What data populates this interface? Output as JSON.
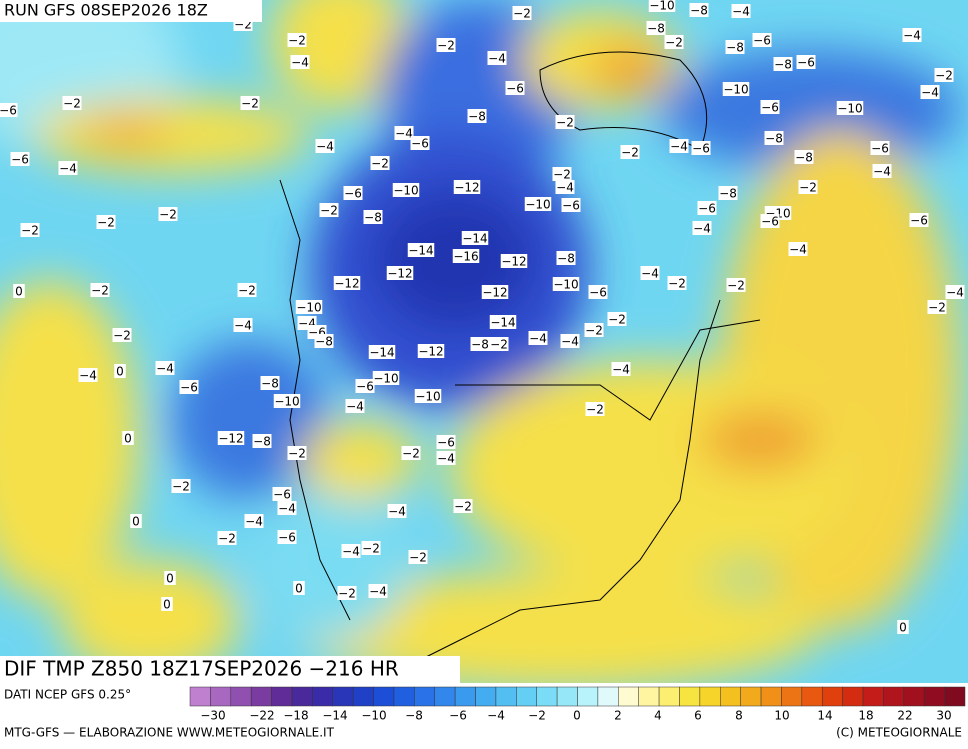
{
  "header": {
    "run": "RUN GFS 08SEP2026 18Z"
  },
  "map": {
    "title": "DIF TMP Z850 18Z17SEP2026 −216 HR",
    "contour_labels": [
      "−2",
      "−2",
      "−10",
      "−8",
      "−4",
      "−8",
      "−2",
      "−8",
      "−6",
      "−4",
      "−2",
      "−2",
      "−4",
      "−4",
      "−8",
      "−6",
      "−2",
      "−4",
      "−6",
      "−2",
      "−2",
      "−6",
      "−10",
      "−6",
      "−10",
      "−8",
      "−2",
      "−4",
      "−6",
      "−4",
      "−2",
      "−4",
      "−6",
      "−8",
      "−6",
      "−6",
      "−4",
      "−2",
      "−8",
      "−4",
      "−2",
      "−10",
      "−12",
      "−4",
      "−6",
      "−2",
      "−8",
      "−10",
      "−6",
      "−8",
      "−2",
      "−6",
      "−10",
      "−6",
      "−2",
      "−2",
      "−2",
      "−6",
      "−4",
      "−14",
      "−14",
      "−16",
      "−12",
      "−8",
      "−4",
      "−12",
      "−12",
      "−10",
      "−6",
      "−12",
      "−4",
      "−2",
      "−2",
      "−2",
      "−2",
      "0",
      "−4",
      "−2",
      "−10",
      "−4",
      "−6",
      "−8",
      "−14",
      "−2",
      "−2",
      "−4",
      "−2",
      "−4",
      "−4",
      "−8",
      "−2",
      "−14",
      "−12",
      "−4",
      "0",
      "−4",
      "−6",
      "−8",
      "−6",
      "−10",
      "−4",
      "−10",
      "−4",
      "−10",
      "−2",
      "0",
      "−12",
      "−8",
      "−6",
      "−2",
      "−2",
      "−4",
      "−2",
      "−6",
      "−4",
      "−2",
      "−4",
      "0",
      "−4",
      "−2",
      "−6",
      "−4",
      "−2",
      "−2",
      "0",
      "−2",
      "0",
      "−4",
      "0",
      "0"
    ]
  },
  "legend": {
    "source": "DATI NCEP GFS 0.25°",
    "labels": [
      "−30",
      "−22",
      "−18",
      "−14",
      "−10",
      "−8",
      "−6",
      "−4",
      "−2",
      "0",
      "2",
      "4",
      "6",
      "8",
      "10",
      "14",
      "18",
      "22",
      "30"
    ]
  },
  "footer": {
    "left": "MTG-GFS — ELABORAZIONE WWW.METEOGIORNALE.IT",
    "right": "(C) METEOGIORNALE"
  }
}
